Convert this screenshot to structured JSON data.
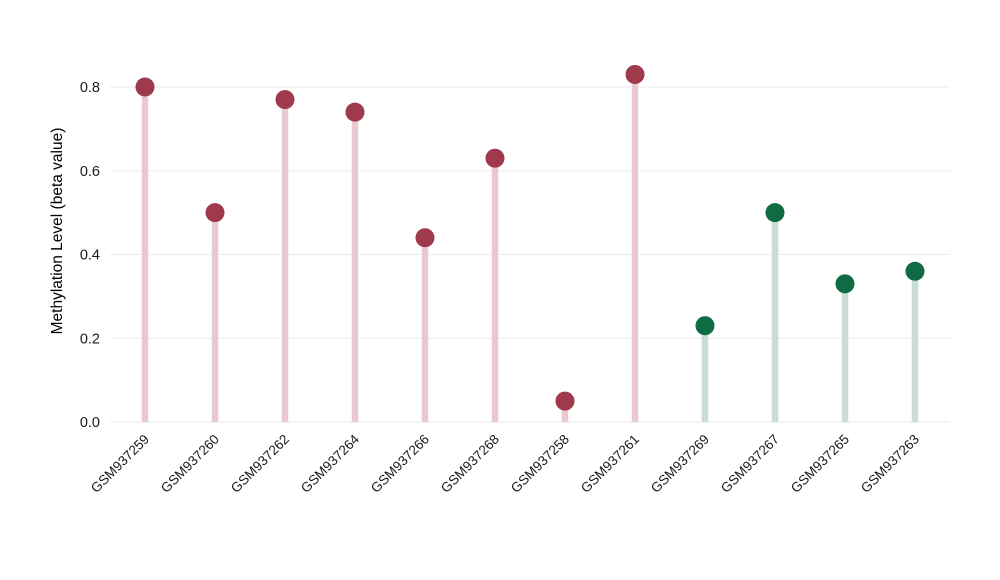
{
  "page": {
    "background": "#ffffff"
  },
  "chart_data": {
    "type": "scatter",
    "variant": "lollipop",
    "title": "",
    "xlabel": "",
    "ylabel": "Methylation Level (beta value)",
    "categories": [
      "GSM937259",
      "GSM937260",
      "GSM937262",
      "GSM937264",
      "GSM937266",
      "GSM937268",
      "GSM937258",
      "GSM937261",
      "GSM937269",
      "GSM937267",
      "GSM937265",
      "GSM937263"
    ],
    "values": [
      0.8,
      0.5,
      0.77,
      0.74,
      0.44,
      0.63,
      0.05,
      0.83,
      0.23,
      0.5,
      0.33,
      0.36
    ],
    "groups": [
      "red",
      "red",
      "red",
      "red",
      "red",
      "red",
      "red",
      "red",
      "green",
      "green",
      "green",
      "green"
    ],
    "group_colors": {
      "red": {
        "dot": "#9e3a4c",
        "stem": "#e9c9cf"
      },
      "green": {
        "dot": "#0e6b43",
        "stem": "#c9ddd3"
      }
    },
    "yticks": [
      0.0,
      0.2,
      0.4,
      0.6,
      0.8
    ],
    "ylim": [
      0,
      0.88
    ],
    "grid": true,
    "grid_color": "#eaeaea",
    "tick_label_color": "#1a1a1a",
    "axis_title_color": "#000000",
    "legend": "none"
  }
}
